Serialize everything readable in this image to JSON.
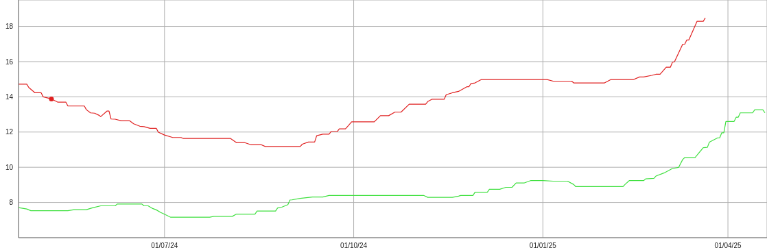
{
  "chart_data": {
    "type": "line",
    "xlim": [
      "2024-04-21",
      "2025-04-20"
    ],
    "xticks": [
      {
        "value": "2024-07-01",
        "label": "01/07/24"
      },
      {
        "value": "2024-10-01",
        "label": "01/10/24"
      },
      {
        "value": "2025-01-01",
        "label": "01/01/25"
      },
      {
        "value": "2025-04-01",
        "label": "01/04/25"
      }
    ],
    "ylim": [
      6,
      19.5
    ],
    "yticks": [
      8,
      10,
      12,
      14,
      16,
      18
    ],
    "grid": true,
    "marker": "none",
    "line_style": "solid",
    "series": [
      {
        "color": "#e02020",
        "x": [
          "2024-04-21",
          "2024-04-25",
          "2024-04-26",
          "2024-04-29",
          "2024-05-02",
          "2024-05-03",
          "2024-05-07",
          "2024-05-10",
          "2024-05-14",
          "2024-05-15",
          "2024-05-23",
          "2024-05-24",
          "2024-05-26",
          "2024-05-28",
          "2024-05-30",
          "2024-05-31",
          "2024-06-03",
          "2024-06-04",
          "2024-06-05",
          "2024-06-07",
          "2024-06-10",
          "2024-06-14",
          "2024-06-16",
          "2024-06-19",
          "2024-06-21",
          "2024-06-24",
          "2024-06-27",
          "2024-06-28",
          "2024-07-01",
          "2024-07-05",
          "2024-07-09",
          "2024-07-10",
          "2024-08-02",
          "2024-08-05",
          "2024-08-09",
          "2024-08-12",
          "2024-08-17",
          "2024-08-19",
          "2024-09-05",
          "2024-09-06",
          "2024-09-09",
          "2024-09-12",
          "2024-09-13",
          "2024-09-16",
          "2024-09-19",
          "2024-09-20",
          "2024-09-23",
          "2024-09-24",
          "2024-09-27",
          "2024-09-30",
          "2024-10-11",
          "2024-10-14",
          "2024-10-18",
          "2024-10-21",
          "2024-10-24",
          "2024-10-28",
          "2024-11-05",
          "2024-11-06",
          "2024-11-08",
          "2024-11-14",
          "2024-11-15",
          "2024-11-18",
          "2024-11-21",
          "2024-11-25",
          "2024-11-26",
          "2024-11-27",
          "2024-11-29",
          "2024-12-02",
          "2025-01-03",
          "2025-01-06",
          "2025-01-15",
          "2025-01-16",
          "2025-01-31",
          "2025-02-03",
          "2025-02-14",
          "2025-02-17",
          "2025-02-19",
          "2025-02-23",
          "2025-02-25",
          "2025-02-27",
          "2025-03-02",
          "2025-03-04",
          "2025-03-05",
          "2025-03-06",
          "2025-03-10",
          "2025-03-11",
          "2025-03-12",
          "2025-03-13",
          "2025-03-17",
          "2025-03-20",
          "2025-03-21"
        ],
        "values": [
          14.72,
          14.72,
          14.53,
          14.23,
          14.23,
          14.0,
          13.88,
          13.7,
          13.7,
          13.48,
          13.48,
          13.27,
          13.09,
          13.07,
          12.96,
          12.88,
          13.19,
          13.19,
          12.74,
          12.73,
          12.64,
          12.64,
          12.47,
          12.33,
          12.31,
          12.21,
          12.21,
          11.99,
          11.83,
          11.69,
          11.69,
          11.64,
          11.64,
          11.4,
          11.4,
          11.28,
          11.28,
          11.18,
          11.18,
          11.31,
          11.43,
          11.43,
          11.79,
          11.88,
          11.88,
          12.03,
          12.03,
          12.18,
          12.18,
          12.58,
          12.58,
          12.93,
          12.93,
          13.13,
          13.13,
          13.58,
          13.58,
          13.73,
          13.86,
          13.86,
          14.12,
          14.23,
          14.31,
          14.57,
          14.57,
          14.75,
          14.79,
          14.98,
          14.98,
          14.89,
          14.89,
          14.79,
          14.79,
          14.98,
          14.98,
          15.13,
          15.13,
          15.22,
          15.28,
          15.28,
          15.68,
          15.68,
          15.96,
          15.99,
          16.99,
          16.99,
          17.23,
          17.23,
          18.29,
          18.29,
          18.49
        ]
      },
      {
        "color": "#40e040",
        "x": [
          "2024-04-21",
          "2024-04-25",
          "2024-04-27",
          "2024-05-15",
          "2024-05-18",
          "2024-05-24",
          "2024-05-27",
          "2024-05-31",
          "2024-06-07",
          "2024-06-08",
          "2024-06-20",
          "2024-06-21",
          "2024-06-23",
          "2024-06-25",
          "2024-06-27",
          "2024-06-29",
          "2024-07-01",
          "2024-07-04",
          "2024-07-23",
          "2024-07-25",
          "2024-08-03",
          "2024-08-05",
          "2024-08-14",
          "2024-08-15",
          "2024-08-24",
          "2024-08-25",
          "2024-08-27",
          "2024-08-30",
          "2024-08-31",
          "2024-09-01",
          "2024-09-05",
          "2024-09-11",
          "2024-09-16",
          "2024-09-19",
          "2024-11-04",
          "2024-11-06",
          "2024-11-18",
          "2024-11-21",
          "2024-11-22",
          "2024-11-28",
          "2024-11-29",
          "2024-12-05",
          "2024-12-06",
          "2024-12-11",
          "2024-12-14",
          "2024-12-17",
          "2024-12-19",
          "2024-12-23",
          "2024-12-26",
          "2025-01-01",
          "2025-01-06",
          "2025-01-13",
          "2025-01-16",
          "2025-01-17",
          "2025-02-09",
          "2025-02-10",
          "2025-02-12",
          "2025-02-19",
          "2025-02-20",
          "2025-02-24",
          "2025-02-25",
          "2025-03-01",
          "2025-03-05",
          "2025-03-08",
          "2025-03-10",
          "2025-03-11",
          "2025-03-16",
          "2025-03-20",
          "2025-03-22",
          "2025-03-23",
          "2025-03-27",
          "2025-03-28",
          "2025-03-29",
          "2025-03-30",
          "2025-03-31",
          "2025-04-04",
          "2025-04-05",
          "2025-04-06",
          "2025-04-07",
          "2025-04-13",
          "2025-04-14",
          "2025-04-18",
          "2025-04-19"
        ],
        "values": [
          7.71,
          7.63,
          7.53,
          7.53,
          7.59,
          7.59,
          7.7,
          7.81,
          7.81,
          7.91,
          7.91,
          7.81,
          7.81,
          7.67,
          7.58,
          7.44,
          7.33,
          7.16,
          7.16,
          7.21,
          7.21,
          7.34,
          7.34,
          7.51,
          7.51,
          7.69,
          7.73,
          7.88,
          8.14,
          8.15,
          8.23,
          8.31,
          8.31,
          8.4,
          8.4,
          8.29,
          8.29,
          8.36,
          8.4,
          8.4,
          8.58,
          8.58,
          8.75,
          8.75,
          8.86,
          8.86,
          9.11,
          9.11,
          9.24,
          9.24,
          9.21,
          9.21,
          9.02,
          8.9,
          8.9,
          9.03,
          9.24,
          9.24,
          9.34,
          9.37,
          9.5,
          9.68,
          9.93,
          9.99,
          10.44,
          10.55,
          10.55,
          11.11,
          11.13,
          11.43,
          11.67,
          11.67,
          11.96,
          11.96,
          12.6,
          12.6,
          12.84,
          12.84,
          13.09,
          13.09,
          13.26,
          13.26,
          13.09
        ]
      },
      {
        "type": "scatter",
        "marker": "circle",
        "color": "#e02020",
        "x": [
          "2024-05-07"
        ],
        "values": [
          13.88
        ]
      }
    ]
  }
}
